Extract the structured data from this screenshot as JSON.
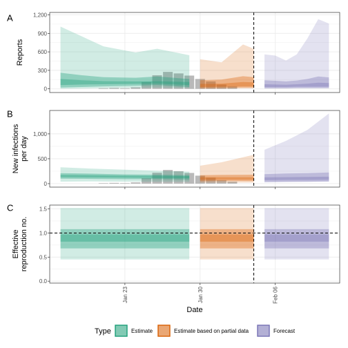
{
  "chart_data": {
    "type": "area",
    "x_axis": {
      "label": "Date",
      "ticks": [
        {
          "date": "2020-01-23",
          "label": "Jan 23"
        },
        {
          "date": "2020-01-30",
          "label": "Jan 30"
        },
        {
          "date": "2020-02-06",
          "label": "Feb 06"
        }
      ],
      "range": [
        "2020-01-16",
        "2020-02-12"
      ]
    },
    "forecast_start": "2020-02-04",
    "colors": {
      "Estimate": "#1b9e77",
      "Estimate based on partial data": "#d95f02",
      "Forecast": "#7570b3",
      "observed_bar": "#808080",
      "grid": "#ebebeb",
      "panel_border": "#333333"
    },
    "legend": {
      "title": "Type",
      "position": "bottom",
      "items": [
        {
          "label": "Estimate",
          "color": "#1b9e77"
        },
        {
          "label": "Estimate based on partial data",
          "color": "#d95f02"
        },
        {
          "label": "Forecast",
          "color": "#7570b3"
        }
      ]
    },
    "panels": [
      {
        "letter": "A",
        "ylabel": [
          "Reports"
        ],
        "ylim": [
          -60,
          1240
        ],
        "yticks": [
          0,
          300,
          600,
          900,
          1200
        ],
        "ytick_labels": [
          "0",
          "300",
          "600",
          "900",
          "1,200"
        ],
        "observed_bars": [
          {
            "date": "2020-01-21",
            "value": 10
          },
          {
            "date": "2020-01-22",
            "value": 15
          },
          {
            "date": "2020-01-23",
            "value": 10
          },
          {
            "date": "2020-01-24",
            "value": 25
          },
          {
            "date": "2020-01-25",
            "value": 110
          },
          {
            "date": "2020-01-26",
            "value": 220
          },
          {
            "date": "2020-01-27",
            "value": 275
          },
          {
            "date": "2020-01-28",
            "value": 250
          },
          {
            "date": "2020-01-29",
            "value": 215
          },
          {
            "date": "2020-01-30",
            "value": 160
          },
          {
            "date": "2020-01-31",
            "value": 120
          },
          {
            "date": "2020-02-01",
            "value": 70
          },
          {
            "date": "2020-02-02",
            "value": 40
          }
        ],
        "series": [
          {
            "type": "Estimate",
            "x": [
              "2020-01-17",
              "2020-01-19",
              "2020-01-21",
              "2020-01-24",
              "2020-01-26",
              "2020-01-29"
            ],
            "ci90": [
              [
                0,
                1010
              ],
              [
                5,
                850
              ],
              [
                10,
                690
              ],
              [
                15,
                590
              ],
              [
                20,
                650
              ],
              [
                10,
                545
              ]
            ],
            "ci50": [
              [
                20,
                260
              ],
              [
                30,
                220
              ],
              [
                40,
                190
              ],
              [
                50,
                180
              ],
              [
                60,
                200
              ],
              [
                30,
                160
              ]
            ],
            "ci20": [
              [
                60,
                160
              ],
              [
                70,
                140
              ],
              [
                75,
                125
              ],
              [
                80,
                120
              ],
              [
                85,
                125
              ],
              [
                60,
                110
              ]
            ]
          },
          {
            "type": "Estimate based on partial data",
            "x": [
              "2020-01-30",
              "2020-02-01",
              "2020-02-03",
              "2020-02-04"
            ],
            "ci90": [
              [
                0,
                480
              ],
              [
                0,
                430
              ],
              [
                5,
                720
              ],
              [
                5,
                650
              ]
            ],
            "ci50": [
              [
                10,
                140
              ],
              [
                15,
                150
              ],
              [
                20,
                205
              ],
              [
                20,
                190
              ]
            ],
            "ci20": [
              [
                30,
                80
              ],
              [
                35,
                85
              ],
              [
                40,
                110
              ],
              [
                40,
                105
              ]
            ]
          },
          {
            "type": "Forecast",
            "x": [
              "2020-02-05",
              "2020-02-06",
              "2020-02-07",
              "2020-02-08",
              "2020-02-09",
              "2020-02-10",
              "2020-02-11"
            ],
            "ci90": [
              [
                5,
                560
              ],
              [
                5,
                540
              ],
              [
                5,
                460
              ],
              [
                5,
                560
              ],
              [
                5,
                820
              ],
              [
                5,
                1130
              ],
              [
                5,
                1060
              ]
            ],
            "ci50": [
              [
                10,
                140
              ],
              [
                10,
                130
              ],
              [
                10,
                120
              ],
              [
                15,
                135
              ],
              [
                15,
                160
              ],
              [
                15,
                200
              ],
              [
                15,
                185
              ]
            ],
            "ci20": [
              [
                30,
                75
              ],
              [
                30,
                70
              ],
              [
                30,
                65
              ],
              [
                35,
                75
              ],
              [
                35,
                85
              ],
              [
                35,
                100
              ],
              [
                35,
                95
              ]
            ]
          }
        ]
      },
      {
        "letter": "B",
        "ylabel": [
          "New infections",
          "per day"
        ],
        "ylim": [
          -70,
          1470
        ],
        "yticks": [
          0,
          500,
          1000
        ],
        "ytick_labels": [
          "0",
          "500",
          "1,000"
        ],
        "observed_bars": [
          {
            "date": "2020-01-21",
            "value": 10
          },
          {
            "date": "2020-01-22",
            "value": 15
          },
          {
            "date": "2020-01-23",
            "value": 10
          },
          {
            "date": "2020-01-24",
            "value": 25
          },
          {
            "date": "2020-01-25",
            "value": 110
          },
          {
            "date": "2020-01-26",
            "value": 220
          },
          {
            "date": "2020-01-27",
            "value": 275
          },
          {
            "date": "2020-01-28",
            "value": 250
          },
          {
            "date": "2020-01-29",
            "value": 215
          },
          {
            "date": "2020-01-30",
            "value": 160
          },
          {
            "date": "2020-01-31",
            "value": 120
          },
          {
            "date": "2020-02-01",
            "value": 70
          },
          {
            "date": "2020-02-02",
            "value": 40
          }
        ],
        "series": [
          {
            "type": "Estimate",
            "x": [
              "2020-01-17",
              "2020-01-20",
              "2020-01-23",
              "2020-01-26",
              "2020-01-29"
            ],
            "ci90": [
              [
                40,
                330
              ],
              [
                45,
                300
              ],
              [
                40,
                280
              ],
              [
                40,
                260
              ],
              [
                40,
                240
              ]
            ],
            "ci50": [
              [
                100,
                210
              ],
              [
                95,
                200
              ],
              [
                90,
                185
              ],
              [
                90,
                180
              ],
              [
                80,
                170
              ]
            ],
            "ci20": [
              [
                130,
                175
              ],
              [
                125,
                170
              ],
              [
                120,
                160
              ],
              [
                115,
                155
              ],
              [
                110,
                150
              ]
            ]
          },
          {
            "type": "Estimate based on partial data",
            "x": [
              "2020-01-30",
              "2020-02-01",
              "2020-02-04"
            ],
            "ci90": [
              [
                20,
                360
              ],
              [
                20,
                430
              ],
              [
                20,
                580
              ]
            ],
            "ci50": [
              [
                50,
                170
              ],
              [
                55,
                175
              ],
              [
                50,
                180
              ]
            ],
            "ci20": [
              [
                80,
                130
              ],
              [
                80,
                130
              ],
              [
                80,
                130
              ]
            ]
          },
          {
            "type": "Forecast",
            "x": [
              "2020-02-05",
              "2020-02-07",
              "2020-02-09",
              "2020-02-11"
            ],
            "ci90": [
              [
                25,
                680
              ],
              [
                30,
                860
              ],
              [
                35,
                1080
              ],
              [
                40,
                1410
              ]
            ],
            "ci50": [
              [
                35,
                190
              ],
              [
                40,
                205
              ],
              [
                40,
                210
              ],
              [
                45,
                225
              ]
            ],
            "ci20": [
              [
                70,
                125
              ],
              [
                75,
                130
              ],
              [
                75,
                135
              ],
              [
                80,
                140
              ]
            ]
          }
        ]
      },
      {
        "letter": "C",
        "ylabel": [
          "Effective",
          "reproduction no."
        ],
        "ylim": [
          -0.04,
          1.58
        ],
        "yticks": [
          0,
          0.5,
          1,
          1.5
        ],
        "ytick_labels": [
          "0.0",
          "0.5",
          "1.0",
          "1.5"
        ],
        "reference_line": 1.0,
        "series": [
          {
            "type": "Estimate",
            "x": [
              "2020-01-17",
              "2020-01-29"
            ],
            "ci90": [
              [
                0.45,
                1.52
              ],
              [
                0.45,
                1.52
              ]
            ],
            "ci50": [
              [
                0.68,
                1.08
              ],
              [
                0.68,
                1.08
              ]
            ],
            "ci20": [
              [
                0.82,
                0.97
              ],
              [
                0.82,
                0.97
              ]
            ]
          },
          {
            "type": "Estimate based on partial data",
            "x": [
              "2020-01-30",
              "2020-02-04"
            ],
            "ci90": [
              [
                0.45,
                1.52
              ],
              [
                0.45,
                1.52
              ]
            ],
            "ci50": [
              [
                0.68,
                1.08
              ],
              [
                0.68,
                1.08
              ]
            ],
            "ci20": [
              [
                0.82,
                0.97
              ],
              [
                0.82,
                0.97
              ]
            ]
          },
          {
            "type": "Forecast",
            "x": [
              "2020-02-05",
              "2020-02-11"
            ],
            "ci90": [
              [
                0.45,
                1.52
              ],
              [
                0.45,
                1.52
              ]
            ],
            "ci50": [
              [
                0.68,
                1.08
              ],
              [
                0.68,
                1.08
              ]
            ],
            "ci20": [
              [
                0.82,
                0.97
              ],
              [
                0.82,
                0.97
              ]
            ]
          }
        ]
      }
    ]
  }
}
